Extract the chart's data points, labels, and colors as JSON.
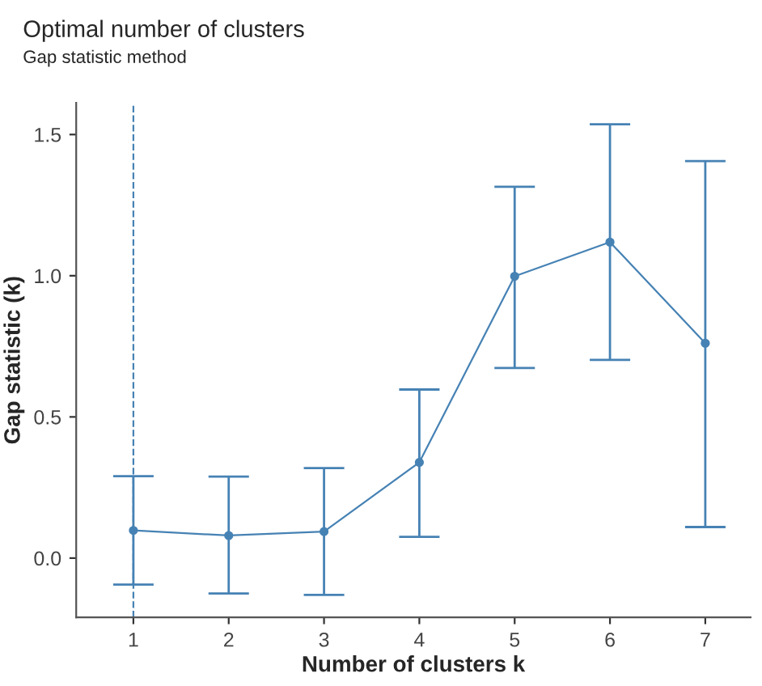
{
  "chart_data": {
    "type": "line",
    "title": "Optimal number of clusters",
    "subtitle": "Gap statistic method",
    "xlabel": "Number of clusters k",
    "ylabel": "Gap statistic (k)",
    "x": [
      1,
      2,
      3,
      4,
      5,
      6,
      7
    ],
    "series": [
      {
        "color": "#4682b4",
        "values": [
          0.098,
          0.08,
          0.094,
          0.339,
          0.998,
          1.119,
          0.761
        ],
        "errors": [
          [
            -0.094,
            0.29
          ],
          [
            -0.125,
            0.289
          ],
          [
            -0.13,
            0.319
          ],
          [
            0.075,
            0.597
          ],
          [
            0.673,
            1.315
          ],
          [
            0.702,
            1.536
          ],
          [
            0.11,
            1.406
          ]
        ]
      }
    ],
    "xlim": [
      0.4,
      7.475
    ],
    "ylim": [
      -0.21,
      1.612
    ],
    "xticks": [
      1,
      2,
      3,
      4,
      5,
      6,
      7
    ],
    "yticks": [
      {
        "value": 0,
        "label": "0.0"
      },
      {
        "value": 0.5,
        "label": "0.5"
      },
      {
        "value": 1,
        "label": "1.0"
      },
      {
        "value": 1.5,
        "label": "1.5"
      }
    ],
    "ref_lines": [
      {
        "axis": "x",
        "value": 1,
        "color": "#4682b4",
        "line_style": "dashed"
      }
    ],
    "marker": "circle",
    "line_style": "solid",
    "grid": false,
    "legend": false
  }
}
